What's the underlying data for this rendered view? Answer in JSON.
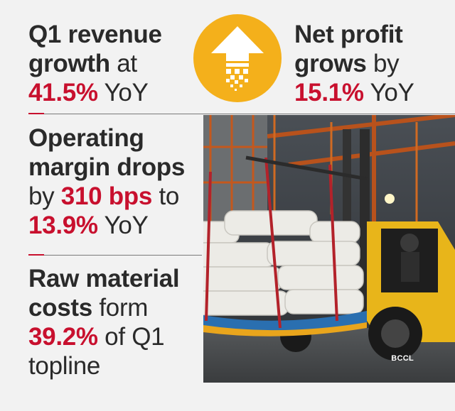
{
  "stats": {
    "q1_revenue": {
      "lead_bold": "Q1 revenue",
      "lead2_bold": "growth",
      "lead2_regular": " at",
      "value": "41.5%",
      "tail": " YoY"
    },
    "net_profit": {
      "lead_bold": "Net profit",
      "lead2_bold": "grows",
      "lead2_regular": " by",
      "value": "15.1%",
      "tail": " YoY"
    },
    "operating_margin": {
      "line1_bold": "Operating",
      "line2_bold": "margin drops",
      "line3_pre": "by ",
      "line3_value": "310 bps",
      "line3_post": " to",
      "line4_value": "13.9%",
      "line4_tail": " YoY"
    },
    "raw_material": {
      "line1_bold": "Raw material",
      "line2_bold": "costs",
      "line2_regular": " form",
      "line3_value": "39.2%",
      "line3_tail": " of Q1",
      "line4": "topline"
    }
  },
  "growth_icon": "up-arrow-icon",
  "photo": {
    "subject": "forklift-carrying-sacks",
    "credit": "BCCL"
  },
  "colors": {
    "accent_red": "#c8102e",
    "badge_yellow": "#f4b01b",
    "text": "#2a2a2a",
    "background": "#f2f2f2"
  }
}
